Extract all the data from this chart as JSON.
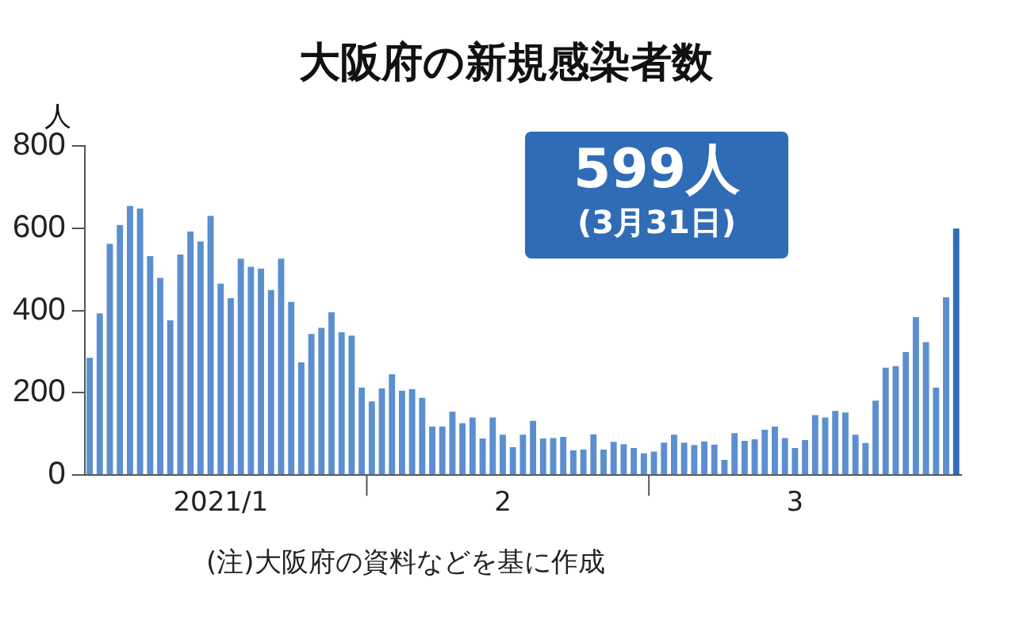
{
  "chart_data": {
    "type": "bar",
    "title": "大阪府の新規感染者数",
    "ylabel": "人",
    "categories": [
      null,
      null,
      null,
      null,
      null,
      null,
      null,
      null,
      null,
      null,
      null,
      null,
      null,
      "2021/1",
      null,
      null,
      null,
      null,
      null,
      null,
      null,
      null,
      null,
      null,
      null,
      null,
      null,
      null,
      null,
      null,
      null,
      null,
      null,
      null,
      null,
      null,
      null,
      null,
      null,
      null,
      null,
      "2",
      null,
      null,
      null,
      null,
      null,
      null,
      null,
      null,
      null,
      null,
      null,
      null,
      null,
      null,
      null,
      null,
      null,
      null,
      null,
      null,
      null,
      null,
      null,
      null,
      null,
      null,
      null,
      null,
      "3",
      null,
      null,
      null,
      null,
      null,
      null,
      null,
      null,
      null,
      null,
      null,
      null,
      null,
      null,
      null,
      null
    ],
    "values": [
      285,
      393,
      562,
      608,
      654,
      648,
      532,
      479,
      376,
      536,
      592,
      568,
      630,
      465,
      430,
      526,
      506,
      502,
      450,
      526,
      421,
      274,
      343,
      358,
      396,
      347,
      339,
      213,
      179,
      211,
      245,
      205,
      209,
      188,
      118,
      118,
      154,
      126,
      140,
      89,
      140,
      98,
      68,
      98,
      132,
      89,
      90,
      93,
      60,
      62,
      99,
      62,
      81,
      75,
      66,
      53,
      57,
      79,
      98,
      79,
      73,
      82,
      74,
      37,
      102,
      83,
      87,
      110,
      118,
      90,
      66,
      85,
      146,
      140,
      156,
      152,
      98,
      78,
      181,
      261,
      265,
      299,
      384,
      323,
      213,
      432,
      599
    ],
    "colors": [
      "#5b8fd0",
      "#5b8fd0",
      "#5b8fd0",
      "#5b8fd0",
      "#5b8fd0",
      "#5b8fd0",
      "#5b8fd0",
      "#5b8fd0",
      "#5b8fd0",
      "#5b8fd0",
      "#5b8fd0",
      "#5b8fd0",
      "#5b8fd0",
      "#5b8fd0",
      "#5b8fd0",
      "#5b8fd0",
      "#5b8fd0",
      "#5b8fd0",
      "#5b8fd0",
      "#5b8fd0",
      "#5b8fd0",
      "#5b8fd0",
      "#5b8fd0",
      "#5b8fd0",
      "#5b8fd0",
      "#5b8fd0",
      "#5b8fd0",
      "#5b8fd0",
      "#5b8fd0",
      "#5b8fd0",
      "#5b8fd0",
      "#5b8fd0",
      "#5b8fd0",
      "#5b8fd0",
      "#5b8fd0",
      "#5b8fd0",
      "#5b8fd0",
      "#5b8fd0",
      "#5b8fd0",
      "#5b8fd0",
      "#5b8fd0",
      "#5b8fd0",
      "#5b8fd0",
      "#5b8fd0",
      "#5b8fd0",
      "#5b8fd0",
      "#5b8fd0",
      "#5b8fd0",
      "#5b8fd0",
      "#5b8fd0",
      "#5b8fd0",
      "#5b8fd0",
      "#5b8fd0",
      "#5b8fd0",
      "#5b8fd0",
      "#5b8fd0",
      "#5b8fd0",
      "#5b8fd0",
      "#5b8fd0",
      "#5b8fd0",
      "#5b8fd0",
      "#5b8fd0",
      "#5b8fd0",
      "#5b8fd0",
      "#5b8fd0",
      "#5b8fd0",
      "#5b8fd0",
      "#5b8fd0",
      "#5b8fd0",
      "#5b8fd0",
      "#5b8fd0",
      "#5b8fd0",
      "#5b8fd0",
      "#5b8fd0",
      "#5b8fd0",
      "#5b8fd0",
      "#5b8fd0",
      "#5b8fd0",
      "#5b8fd0",
      "#5b8fd0",
      "#5b8fd0",
      "#5b8fd0",
      "#5b8fd0",
      "#5b8fd0",
      "#5b8fd0",
      "#5b8fd0",
      "#2f6cb5"
    ],
    "ylim": [
      0,
      800
    ],
    "yticks": [
      0,
      200,
      400,
      600,
      800
    ],
    "grid": false,
    "legend": false,
    "annotations": [
      "599人\n(3月31日)",
      "(注)大阪府の資料などを基に作成"
    ]
  }
}
